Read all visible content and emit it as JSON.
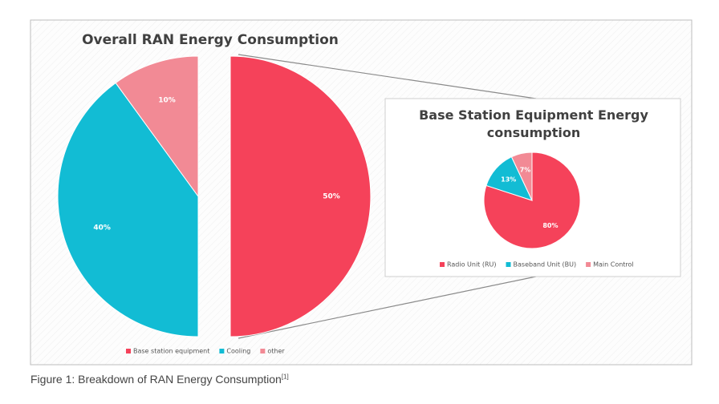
{
  "chart_data": [
    {
      "type": "pie",
      "title": "Overall RAN Energy Consumption",
      "categories": [
        "Base station equipment",
        "Cooling",
        "other"
      ],
      "values": [
        50,
        40,
        10
      ],
      "value_labels": [
        "50%",
        "40%",
        "10%"
      ],
      "colors": [
        "#f5425a",
        "#12bcd4",
        "#f28a95"
      ],
      "legend": "bottom"
    },
    {
      "type": "pie",
      "title": "Base Station Equipment Energy consumption",
      "categories": [
        "Radio Unit (RU)",
        "Baseband Unit (BU)",
        "Main Control"
      ],
      "values": [
        80,
        13,
        7
      ],
      "value_labels": [
        "80%",
        "13%",
        "7%"
      ],
      "colors": [
        "#f5425a",
        "#12bcd4",
        "#f28a95"
      ],
      "legend": "bottom"
    }
  ],
  "caption": {
    "text": "Figure 1: Breakdown of RAN Energy Consumption",
    "reference": "[1]"
  }
}
